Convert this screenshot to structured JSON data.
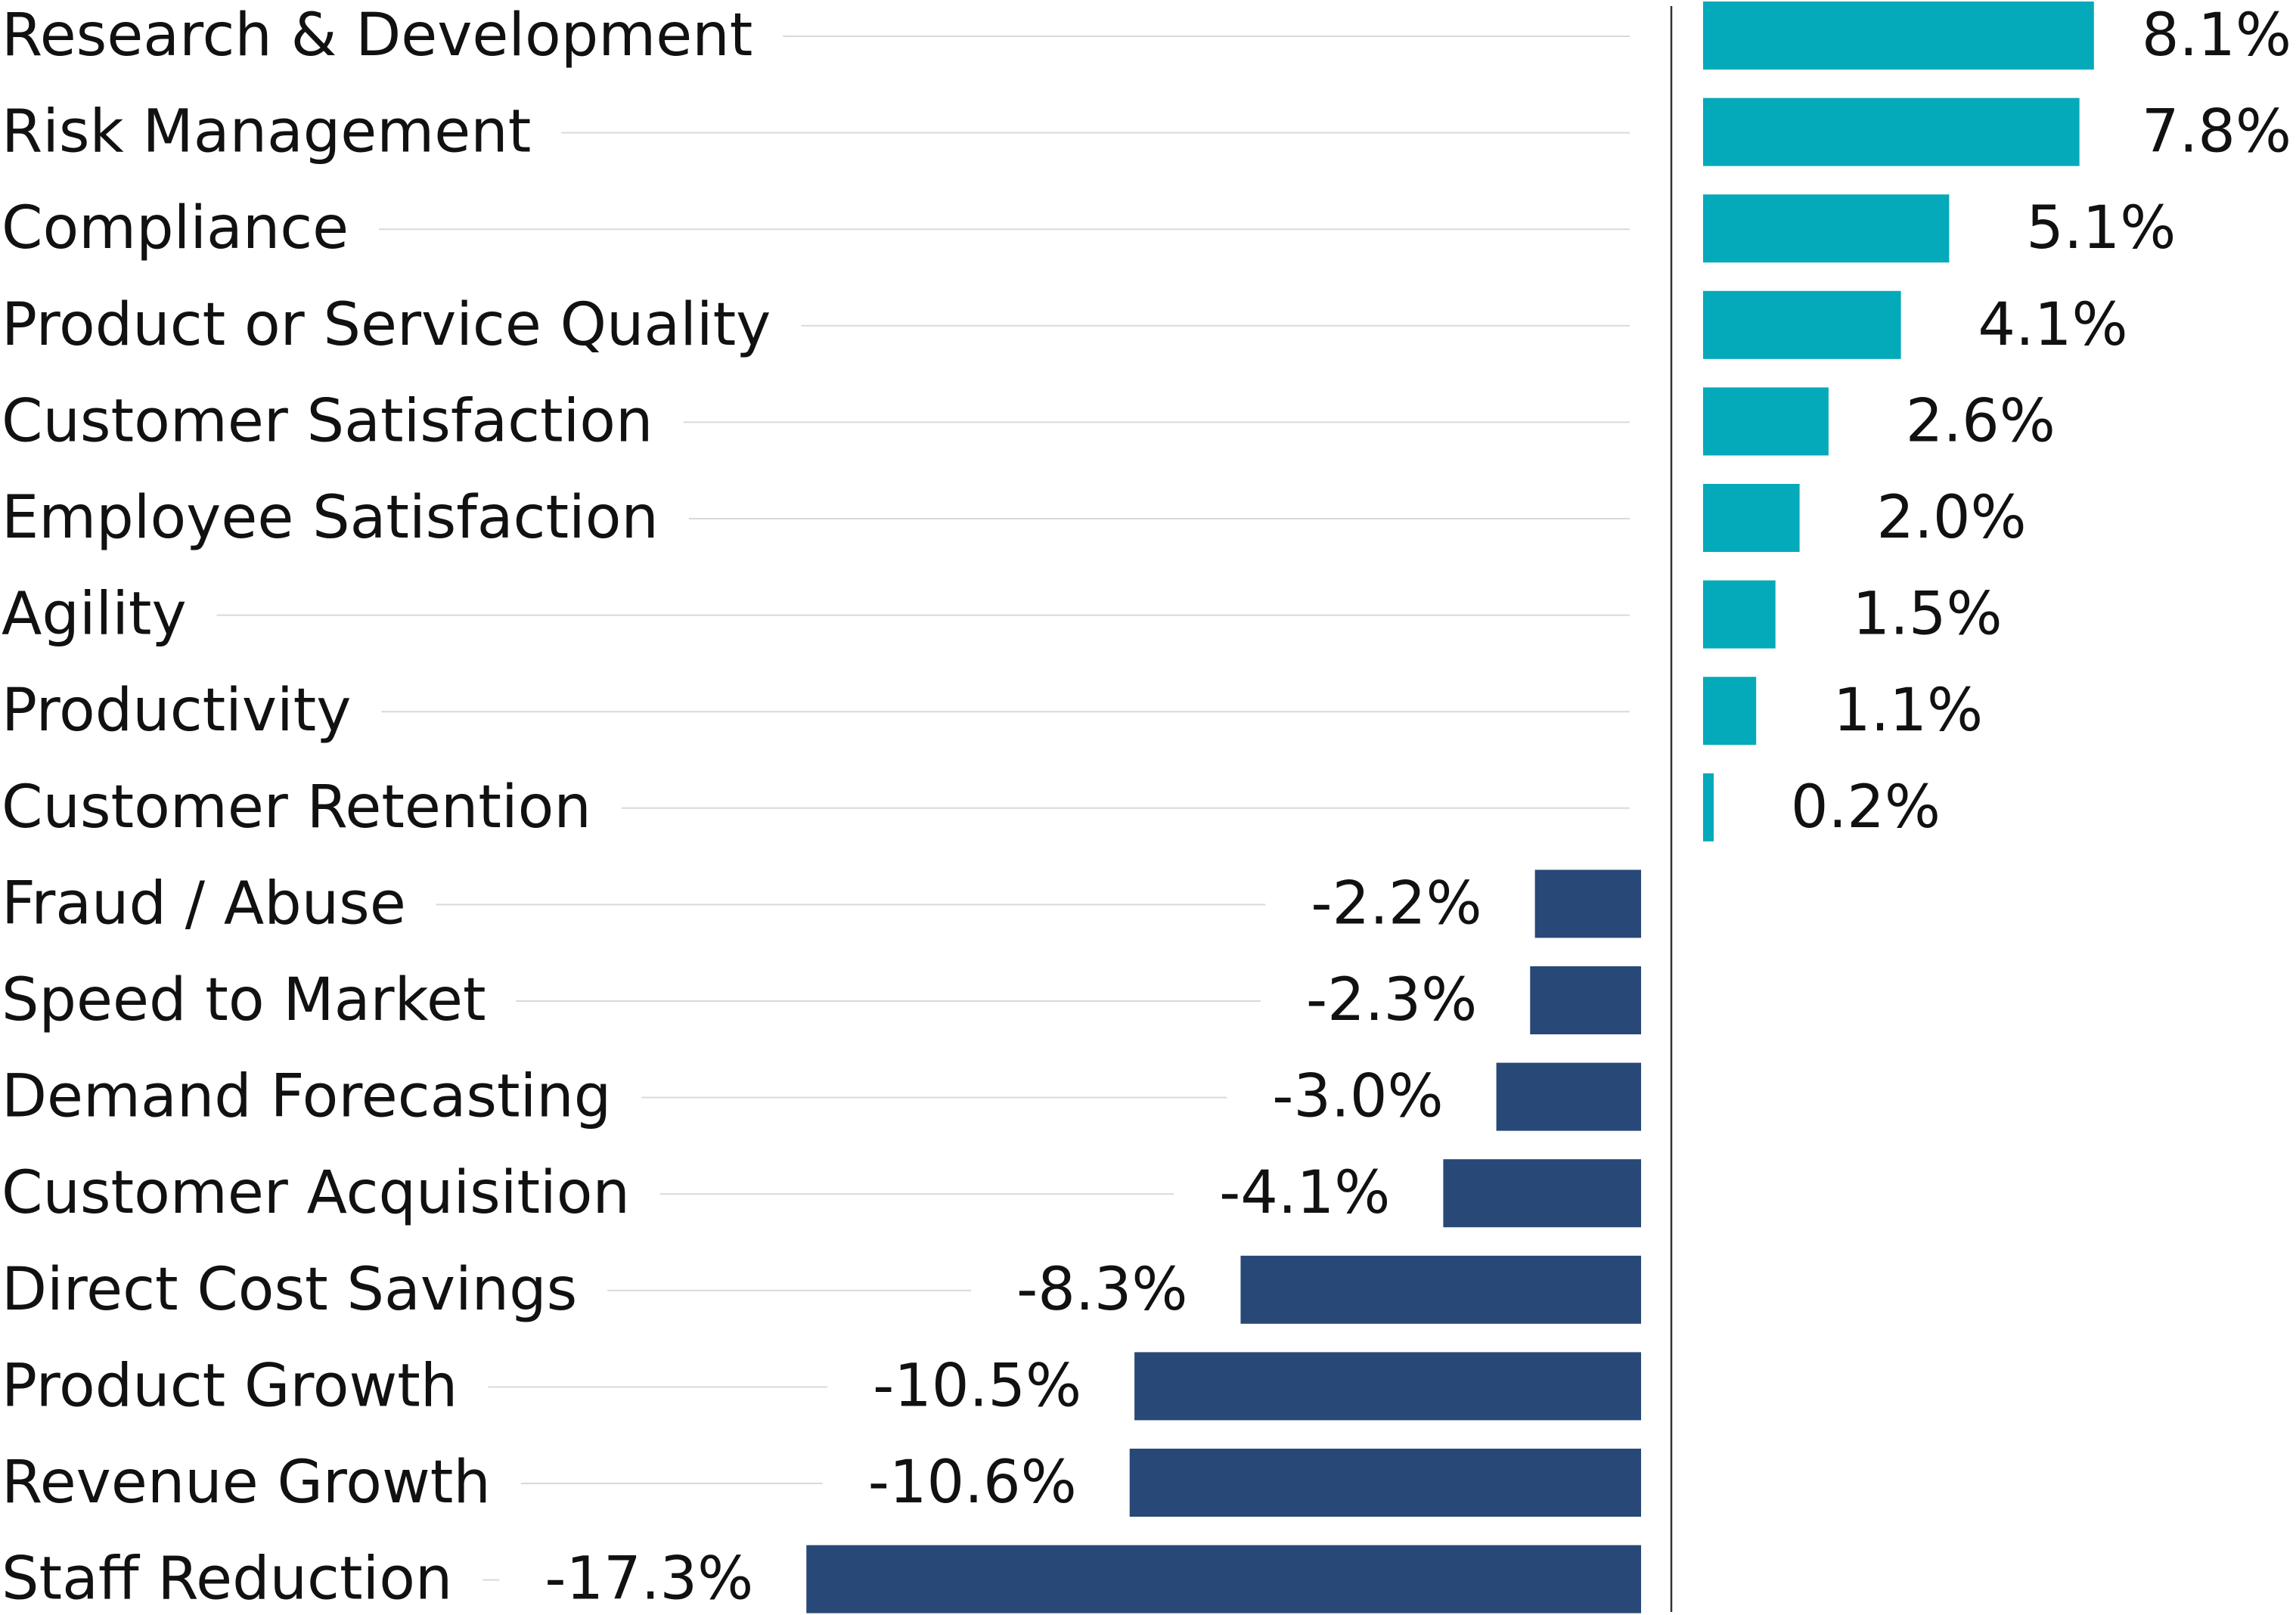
{
  "chart_data": {
    "type": "bar",
    "orientation": "horizontal",
    "categories": [
      "Research & Development",
      "Risk Management",
      "Compliance",
      "Product or Service Quality",
      "Customer Satisfaction",
      "Employee Satisfaction",
      "Agility",
      "Productivity",
      "Customer Retention",
      "Fraud / Abuse",
      "Speed to Market",
      "Demand Forecasting",
      "Customer Acquisition",
      "Direct Cost Savings",
      "Product Growth",
      "Revenue Growth",
      "Staff Reduction"
    ],
    "values": [
      8.1,
      7.8,
      5.1,
      4.1,
      2.6,
      2.0,
      1.5,
      1.1,
      0.2,
      -2.2,
      -2.3,
      -3.0,
      -4.1,
      -8.3,
      -10.5,
      -10.6,
      -17.3
    ],
    "value_labels": [
      "8.1%",
      "7.8%",
      "5.1%",
      "4.1%",
      "2.6%",
      "2.0%",
      "1.5%",
      "1.1%",
      "0.2%",
      "-2.2%",
      "-2.3%",
      "-3.0%",
      "-4.1%",
      "-8.3%",
      "-10.5%",
      "-10.6%",
      "-17.3%"
    ],
    "unit": "%",
    "xlim": [
      -17.3,
      8.1
    ],
    "grid": false,
    "legend": "none",
    "colors": {
      "positive": "#04aab9",
      "negative": "#284877",
      "leader": "#d9d9d9",
      "axis": "#333333",
      "text": "#111111"
    }
  }
}
